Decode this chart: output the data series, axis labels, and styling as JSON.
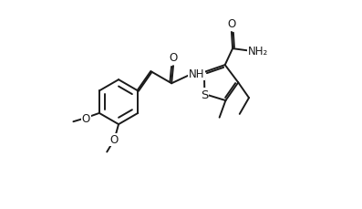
{
  "bg_color": "#ffffff",
  "line_color": "#1a1a1a",
  "line_width": 1.4,
  "font_size": 8.5,
  "fig_width": 3.97,
  "fig_height": 2.3,
  "dpi": 100,
  "xlim": [
    -0.5,
    10.5
  ],
  "ylim": [
    -1.8,
    5.8
  ]
}
